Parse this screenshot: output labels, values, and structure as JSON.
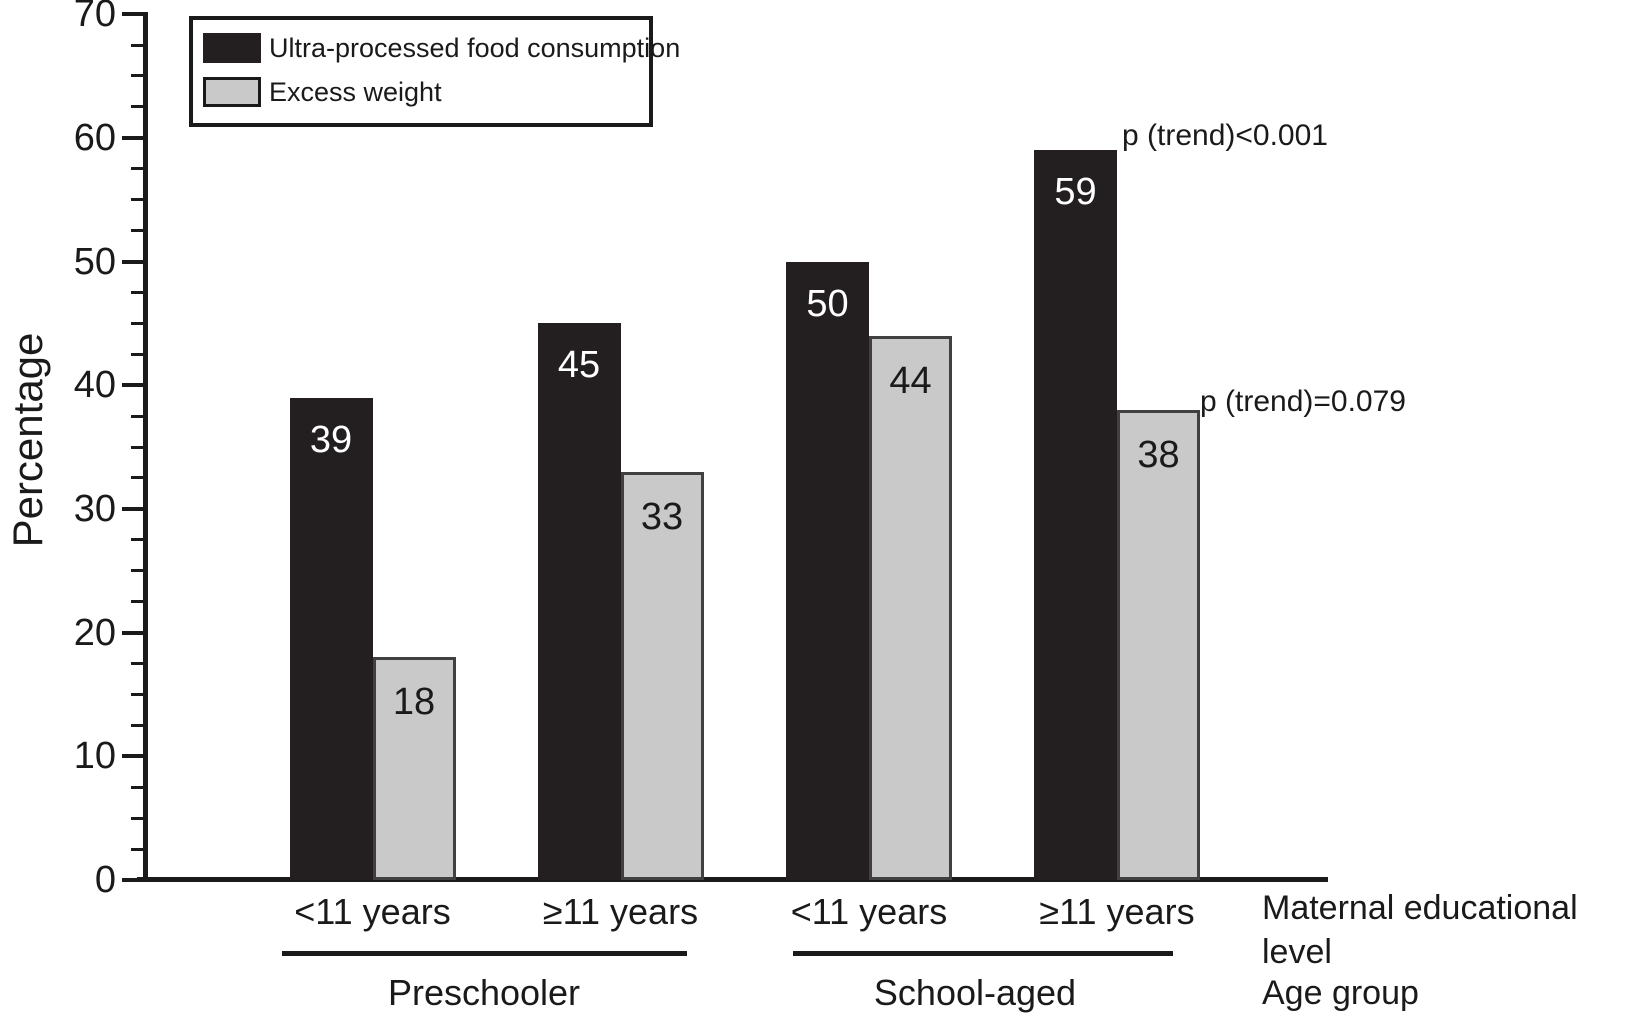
{
  "chart_data": {
    "type": "bar",
    "title": "",
    "ylabel": "Percentage",
    "ylim": [
      0,
      70
    ],
    "yticks": [
      "0",
      "10",
      "20",
      "30",
      "40",
      "50",
      "60",
      "70"
    ],
    "minor_tick_step": 2.5,
    "grid": false,
    "legend_position": "top-left",
    "categories": [
      "<11 years",
      "≥11 years",
      "<11 years",
      "≥11 years"
    ],
    "age_groups": [
      {
        "label": "Preschooler",
        "span": [
          0,
          1
        ]
      },
      {
        "label": "School-aged",
        "span": [
          2,
          3
        ]
      }
    ],
    "series": [
      {
        "name": "Ultra-processed food consumption",
        "color": "#231f20",
        "label_color": "#ffffff",
        "values": [
          39,
          45,
          50,
          59
        ]
      },
      {
        "name": "Excess weight",
        "color": "#c9c9c9",
        "border_color": "#404040",
        "label_color": "#1a1a1a",
        "values": [
          18,
          33,
          44,
          38
        ]
      }
    ],
    "annotations": [
      {
        "text": "p (trend)<0.001"
      },
      {
        "text": "p (trend)=0.079"
      }
    ],
    "row_labels": {
      "maternal": [
        "Maternal educational",
        "level"
      ],
      "age_group": "Age group"
    }
  }
}
